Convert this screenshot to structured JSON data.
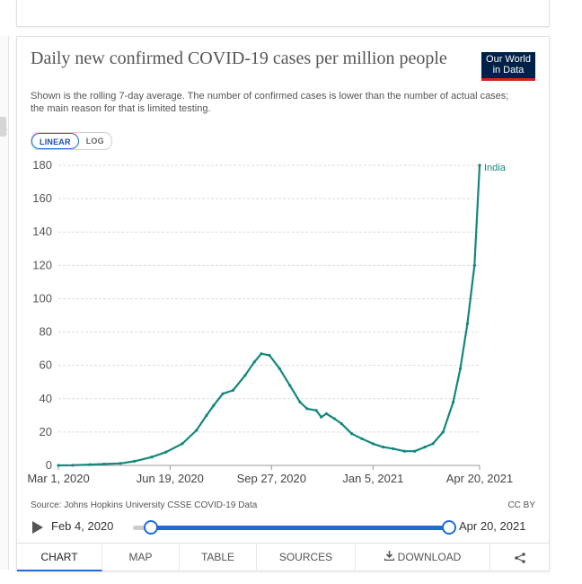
{
  "header": {
    "title": "Daily new confirmed COVID-19 cases per million people",
    "subtitle": "Shown is the rolling 7-day average. The number of confirmed cases is lower than the number of actual cases; the main reason for that is limited testing.",
    "logo_line1": "Our World",
    "logo_line2": "in Data",
    "logo_color": "#002147"
  },
  "scale_toggle": {
    "linear": "LINEAR",
    "log": "LOG",
    "active": "LINEAR"
  },
  "chart_data": {
    "type": "line",
    "title": "Daily new confirmed COVID-19 cases per million people",
    "x_tick_labels": [
      "Mar 1, 2020",
      "Jun 19, 2020",
      "Sep 27, 2020",
      "Jan 5, 2021",
      "Apr 20, 2021"
    ],
    "y_ticks": [
      0,
      20,
      40,
      60,
      80,
      100,
      120,
      140,
      160,
      180
    ],
    "ylim": [
      0,
      180
    ],
    "grid": "horizontal dashed",
    "series": [
      {
        "name": "India",
        "color": "#15877c",
        "x": [
          "2020-03-01",
          "2020-03-15",
          "2020-04-01",
          "2020-04-15",
          "2020-05-01",
          "2020-05-15",
          "2020-06-01",
          "2020-06-15",
          "2020-07-01",
          "2020-07-15",
          "2020-07-25",
          "2020-08-01",
          "2020-08-10",
          "2020-08-20",
          "2020-09-01",
          "2020-09-10",
          "2020-09-17",
          "2020-09-25",
          "2020-10-05",
          "2020-10-15",
          "2020-10-25",
          "2020-11-01",
          "2020-11-10",
          "2020-11-15",
          "2020-11-20",
          "2020-11-28",
          "2020-12-05",
          "2020-12-15",
          "2020-12-25",
          "2021-01-05",
          "2021-01-15",
          "2021-01-25",
          "2021-02-05",
          "2021-02-15",
          "2021-02-25",
          "2021-03-05",
          "2021-03-15",
          "2021-03-25",
          "2021-04-01",
          "2021-04-08",
          "2021-04-15",
          "2021-04-20"
        ],
        "y": [
          0,
          0.1,
          0.5,
          0.8,
          1.2,
          2.5,
          5,
          8,
          13,
          21,
          30,
          36,
          43,
          45,
          54,
          62,
          67,
          66,
          58,
          48,
          38,
          34,
          33,
          29,
          31,
          28,
          25,
          19,
          16,
          13,
          11,
          10,
          8.5,
          8.5,
          11,
          13,
          20,
          38,
          58,
          85,
          120,
          180
        ]
      }
    ]
  },
  "footer": {
    "source": "Source: Johns Hopkins University CSSE COVID-19 Data",
    "license": "CC BY"
  },
  "timeline": {
    "start": "Feb 4, 2020",
    "end": "Apr 20, 2021",
    "start_fraction": 0.05,
    "end_fraction": 1.0
  },
  "tabs": [
    {
      "label": "CHART",
      "active": true
    },
    {
      "label": "MAP"
    },
    {
      "label": "TABLE"
    },
    {
      "label": "SOURCES"
    },
    {
      "label": "DOWNLOAD",
      "icon": "download-icon"
    },
    {
      "label": "",
      "icon": "share-icon"
    }
  ],
  "share_glyph": "⋖"
}
